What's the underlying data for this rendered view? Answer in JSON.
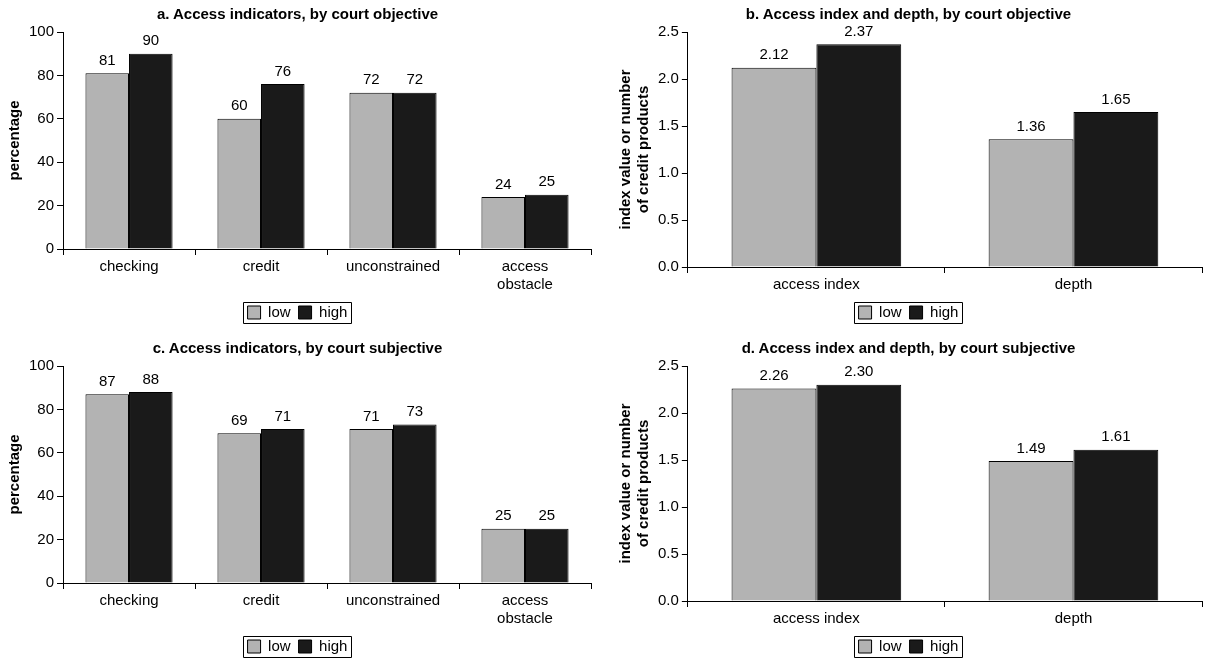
{
  "chart_data": [
    {
      "type": "bar",
      "title": "a. Access indicators, by court objective",
      "ylabel": "percentage",
      "categories": [
        "checking",
        "credit",
        "unconstrained",
        "access obstacle"
      ],
      "series": [
        {
          "name": "low",
          "color": "#b3b3b3",
          "values": [
            81,
            60,
            72,
            24
          ]
        },
        {
          "name": "high",
          "color": "#1a1a1a",
          "values": [
            90,
            76,
            72,
            25
          ]
        }
      ],
      "ylim": [
        0,
        100
      ],
      "yticks": [
        0,
        20,
        40,
        60,
        80,
        100
      ],
      "grid": false,
      "legend": "bottom",
      "data_labels": true
    },
    {
      "type": "bar",
      "title": "b. Access index and depth, by court objective",
      "ylabel": "index value or number of credit products",
      "categories": [
        "access index",
        "depth"
      ],
      "series": [
        {
          "name": "low",
          "color": "#b3b3b3",
          "values": [
            2.12,
            1.36
          ],
          "value_labels": [
            "2.12",
            "1.36"
          ]
        },
        {
          "name": "high",
          "color": "#1a1a1a",
          "values": [
            2.37,
            1.65
          ],
          "value_labels": [
            "2.37",
            "1.65"
          ]
        }
      ],
      "ylim": [
        0,
        2.5
      ],
      "yticks": [
        {
          "value": 0,
          "label": "0.0"
        },
        0.5,
        {
          "value": 1,
          "label": "1.0"
        },
        1.5,
        {
          "value": 2,
          "label": "2.0"
        },
        2.5
      ],
      "grid": false,
      "legend": "bottom"
    },
    {
      "type": "bar",
      "title": "c. Access indicators, by court subjective",
      "ylabel": "percentage",
      "categories": [
        "checking",
        "credit",
        "unconstrained",
        "access obstacle"
      ],
      "series": [
        {
          "name": "low",
          "color": "#b3b3b3",
          "values": [
            87,
            69,
            71,
            25
          ]
        },
        {
          "name": "high",
          "color": "#1a1a1a",
          "values": [
            88,
            71,
            73,
            25
          ]
        }
      ],
      "ylim": [
        0,
        100
      ],
      "yticks": [
        0,
        20,
        40,
        60,
        80,
        100
      ],
      "grid": false,
      "legend": "bottom",
      "data_labels": true
    },
    {
      "type": "bar",
      "title": "d. Access index and depth, by court subjective",
      "ylabel": "index value or number of credit products",
      "categories": [
        "access index",
        "depth"
      ],
      "series": [
        {
          "name": "low",
          "color": "#b3b3b3",
          "values": [
            2.26,
            1.49
          ],
          "value_labels": [
            "2.26",
            "1.49"
          ]
        },
        {
          "name": "high",
          "color": "#1a1a1a",
          "values": [
            2.3,
            1.61
          ],
          "value_labels": [
            "2.30",
            "1.61"
          ]
        }
      ],
      "ylim": [
        0,
        2.5
      ],
      "yticks": [
        {
          "value": 0,
          "label": "0.0"
        },
        0.5,
        {
          "value": 1,
          "label": "1.0"
        },
        1.5,
        {
          "value": 2,
          "label": "2.0"
        },
        2.5
      ],
      "grid": false,
      "legend": "bottom"
    }
  ]
}
